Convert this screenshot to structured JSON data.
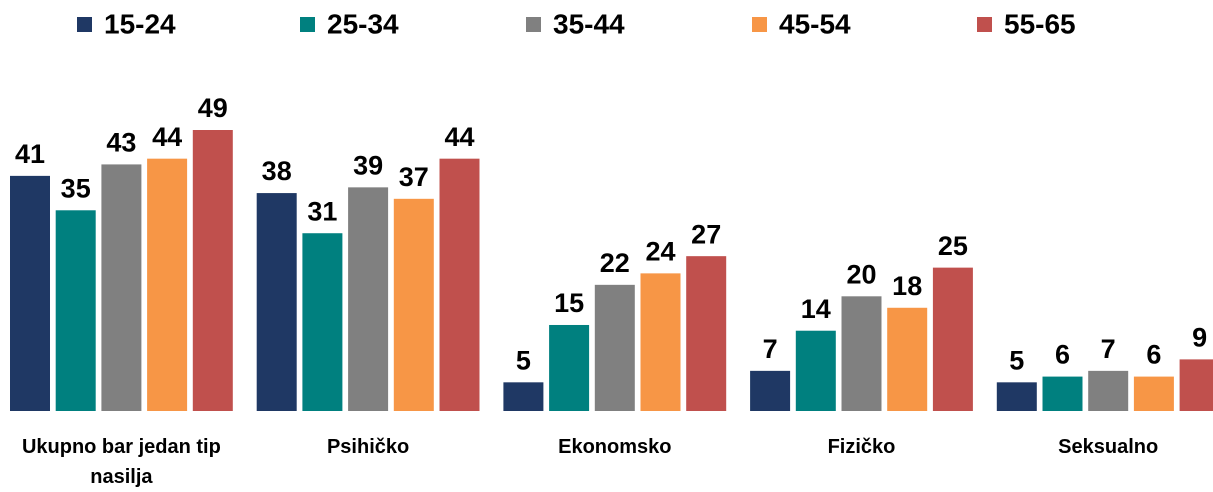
{
  "chart_data": {
    "type": "bar",
    "categories": [
      "Ukupno bar jedan tip nasilja",
      "Psihičko",
      "Ekonomsko",
      "Fizičko",
      "Seksualno"
    ],
    "series": [
      {
        "name": "15-24",
        "color": "#1f3864",
        "values": [
          41,
          38,
          5,
          7,
          5
        ]
      },
      {
        "name": "25-34",
        "color": "#00807f",
        "values": [
          35,
          31,
          15,
          14,
          6
        ]
      },
      {
        "name": "35-44",
        "color": "#808080",
        "values": [
          43,
          39,
          22,
          20,
          7
        ]
      },
      {
        "name": "45-54",
        "color": "#f79646",
        "values": [
          44,
          37,
          24,
          18,
          6
        ]
      },
      {
        "name": "55-65",
        "color": "#c0504d",
        "values": [
          49,
          44,
          27,
          25,
          9
        ]
      }
    ],
    "legend": "top"
  }
}
